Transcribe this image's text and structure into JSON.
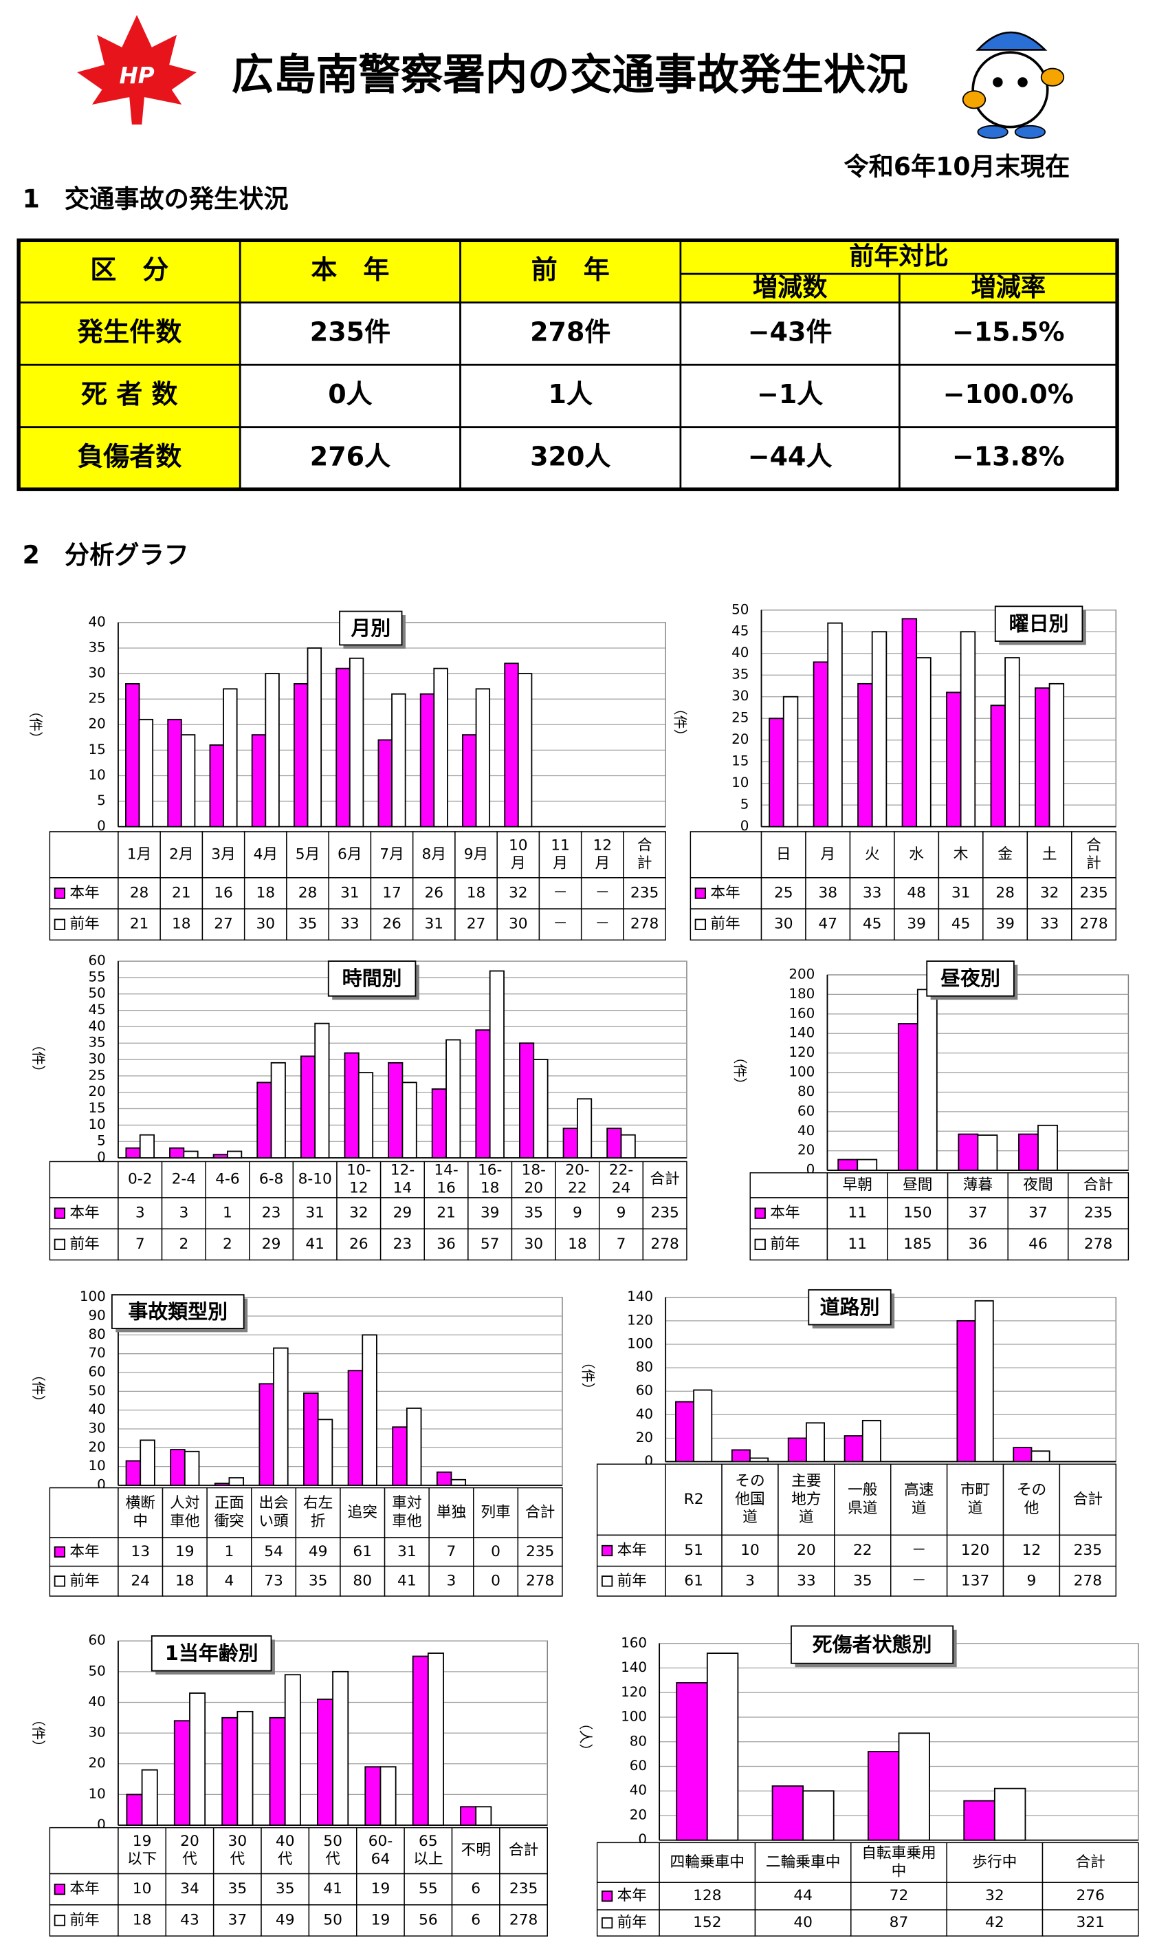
{
  "header": {
    "logo_text": "HP",
    "title": "広島南警察署内の交通事故発生状況",
    "date": "令和6年10月末現在"
  },
  "section1": {
    "heading": "1　交通事故の発生状況",
    "table": {
      "header": [
        "区　分",
        "本　年",
        "前　年"
      ],
      "group_header": "前年対比",
      "sub_headers": [
        "増減数",
        "増減率"
      ],
      "rows": [
        [
          "発生件数",
          "235件",
          "278件",
          "−43件",
          "−15.5%"
        ],
        [
          "死 者 数",
          "0人",
          "1人",
          "−1人",
          "−100.0%"
        ],
        [
          "負傷者数",
          "276人",
          "320人",
          "−44人",
          "−13.8%"
        ]
      ]
    }
  },
  "section2": {
    "heading": "2　分析グラフ"
  },
  "chart_data": [
    {
      "type": "bar",
      "title": "月別",
      "y_label": "（件）",
      "total_label": "合\n計",
      "categories": [
        "1月",
        "2月",
        "3月",
        "4月",
        "5月",
        "6月",
        "7月",
        "8月",
        "9月",
        "10\n月",
        "11\n月",
        "12\n月"
      ],
      "series": [
        {
          "name": "本年",
          "color": "#ff00ff",
          "values": [
            28,
            21,
            16,
            18,
            28,
            31,
            17,
            26,
            18,
            32,
            null,
            null
          ],
          "value_labels": [
            "28",
            "21",
            "16",
            "18",
            "28",
            "31",
            "17",
            "26",
            "18",
            "32",
            "－",
            "－"
          ],
          "total": 235
        },
        {
          "name": "前年",
          "color": "#ffffff",
          "values": [
            21,
            18,
            27,
            30,
            35,
            33,
            26,
            31,
            27,
            30,
            null,
            null
          ],
          "value_labels": [
            "21",
            "18",
            "27",
            "30",
            "35",
            "33",
            "26",
            "31",
            "27",
            "30",
            "－",
            "－"
          ],
          "total": 278
        }
      ],
      "ylim": [
        0,
        40
      ],
      "yticks": [
        0,
        5,
        10,
        15,
        20,
        25,
        30,
        35,
        40
      ],
      "grid": true
    },
    {
      "type": "bar",
      "title": "曜日別",
      "y_label": "（件）",
      "total_label": "合\n計",
      "categories": [
        "日",
        "月",
        "火",
        "水",
        "木",
        "金",
        "土"
      ],
      "series": [
        {
          "name": "本年",
          "color": "#ff00ff",
          "values": [
            25,
            38,
            33,
            48,
            31,
            28,
            32
          ],
          "total": 235
        },
        {
          "name": "前年",
          "color": "#ffffff",
          "values": [
            30,
            47,
            45,
            39,
            45,
            39,
            33
          ],
          "total": 278
        }
      ],
      "ylim": [
        0,
        50
      ],
      "yticks": [
        0,
        5,
        10,
        15,
        20,
        25,
        30,
        35,
        40,
        45,
        50
      ],
      "grid": true
    },
    {
      "type": "bar",
      "title": "時間別",
      "y_label": "（件）",
      "total_label": "合計",
      "categories": [
        "0-2",
        "2-4",
        "4-6",
        "6-8",
        "8-10",
        "10-\n12",
        "12-\n14",
        "14-\n16",
        "16-\n18",
        "18-\n20",
        "20-\n22",
        "22-\n24"
      ],
      "series": [
        {
          "name": "本年",
          "color": "#ff00ff",
          "values": [
            3,
            3,
            1,
            23,
            31,
            32,
            29,
            21,
            39,
            35,
            9,
            9
          ],
          "total": 235
        },
        {
          "name": "前年",
          "color": "#ffffff",
          "values": [
            7,
            2,
            2,
            29,
            41,
            26,
            23,
            36,
            57,
            30,
            18,
            7
          ],
          "total": 278
        }
      ],
      "ylim": [
        0,
        60
      ],
      "yticks": [
        0,
        5,
        10,
        15,
        20,
        25,
        30,
        35,
        40,
        45,
        50,
        55,
        60
      ],
      "grid": true
    },
    {
      "type": "bar",
      "title": "昼夜別",
      "y_label": "（件）",
      "total_label": "合計",
      "categories": [
        "早朝",
        "昼間",
        "薄暮",
        "夜間"
      ],
      "series": [
        {
          "name": "本年",
          "color": "#ff00ff",
          "values": [
            11,
            150,
            37,
            37
          ],
          "total": 235
        },
        {
          "name": "前年",
          "color": "#ffffff",
          "values": [
            11,
            185,
            36,
            46
          ],
          "total": 278
        }
      ],
      "ylim": [
        0,
        200
      ],
      "yticks": [
        0,
        20,
        40,
        60,
        80,
        100,
        120,
        140,
        160,
        180,
        200
      ],
      "grid": true
    },
    {
      "type": "bar",
      "title": "事故類型別",
      "y_label": "（件）",
      "total_label": "合計",
      "categories": [
        "横断\n中",
        "人対\n車他",
        "正面\n衝突",
        "出会\nい頭",
        "右左\n折",
        "追突",
        "車対\n車他",
        "単独",
        "列車"
      ],
      "series": [
        {
          "name": "本年",
          "color": "#ff00ff",
          "values": [
            13,
            19,
            1,
            54,
            49,
            61,
            31,
            7,
            0
          ],
          "total": 235
        },
        {
          "name": "前年",
          "color": "#ffffff",
          "values": [
            24,
            18,
            4,
            73,
            35,
            80,
            41,
            3,
            0
          ],
          "total": 278
        }
      ],
      "ylim": [
        0,
        100
      ],
      "yticks": [
        0,
        10,
        20,
        30,
        40,
        50,
        60,
        70,
        80,
        90,
        100
      ],
      "grid": true
    },
    {
      "type": "bar",
      "title": "道路別",
      "y_label": "（件）",
      "total_label": "合計",
      "categories": [
        "R2",
        "その\n他国\n道",
        "主要\n地方\n道",
        "一般\n県道",
        "高速\n道",
        "市町\n道",
        "その\n他"
      ],
      "series": [
        {
          "name": "本年",
          "color": "#ff00ff",
          "values": [
            51,
            10,
            20,
            22,
            null,
            120,
            12
          ],
          "value_labels": [
            "51",
            "10",
            "20",
            "22",
            "－",
            "120",
            "12"
          ],
          "total": 235
        },
        {
          "name": "前年",
          "color": "#ffffff",
          "values": [
            61,
            3,
            33,
            35,
            null,
            137,
            9
          ],
          "value_labels": [
            "61",
            "3",
            "33",
            "35",
            "－",
            "137",
            "9"
          ],
          "total": 278
        }
      ],
      "ylim": [
        0,
        140
      ],
      "yticks": [
        0,
        20,
        40,
        60,
        80,
        100,
        120,
        140
      ],
      "grid": true
    },
    {
      "type": "bar",
      "title": "1当年齢別",
      "y_label": "（件）",
      "total_label": "合計",
      "categories": [
        "19\n以下",
        "20\n代",
        "30\n代",
        "40\n代",
        "50\n代",
        "60-\n64",
        "65\n以上",
        "不明"
      ],
      "series": [
        {
          "name": "本年",
          "color": "#ff00ff",
          "values": [
            10,
            34,
            35,
            35,
            41,
            19,
            55,
            6
          ],
          "total": 235
        },
        {
          "name": "前年",
          "color": "#ffffff",
          "values": [
            18,
            43,
            37,
            49,
            50,
            19,
            56,
            6
          ],
          "total": 278
        }
      ],
      "ylim": [
        0,
        60
      ],
      "yticks": [
        0,
        10,
        20,
        30,
        40,
        50,
        60
      ],
      "grid": true
    },
    {
      "type": "bar",
      "title": "死傷者状態別",
      "y_label": "（人）",
      "total_label": "合計",
      "categories": [
        "四輪乗車中",
        "二輪乗車中",
        "自転車乗用\n中",
        "歩行中"
      ],
      "series": [
        {
          "name": "本年",
          "color": "#ff00ff",
          "values": [
            128,
            44,
            72,
            32
          ],
          "total": 276
        },
        {
          "name": "前年",
          "color": "#ffffff",
          "values": [
            152,
            40,
            87,
            42
          ],
          "total": 321
        }
      ],
      "ylim": [
        0,
        160
      ],
      "yticks": [
        0,
        20,
        40,
        60,
        80,
        100,
        120,
        140,
        160
      ],
      "grid": true
    }
  ]
}
